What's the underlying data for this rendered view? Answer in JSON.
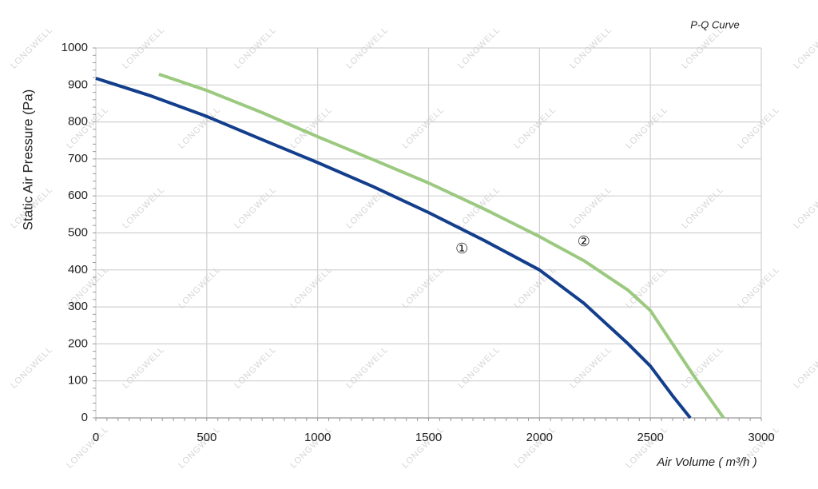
{
  "chart_data": {
    "type": "line",
    "title": "P-Q Curve",
    "watermark": "LONGWELL",
    "x_label": "Air Volume ( m³/h )",
    "y_label": "Static Air Pressure  (Pa)",
    "xlim": [
      0,
      3000
    ],
    "ylim": [
      0,
      1000
    ],
    "xticks": [
      0,
      500,
      1000,
      1500,
      2000,
      2500,
      3000
    ],
    "yticks": [
      0,
      100,
      200,
      300,
      400,
      500,
      600,
      700,
      800,
      900,
      1000
    ],
    "grid": true,
    "series": [
      {
        "name": "①",
        "color": "#123e8c",
        "x": [
          0,
          250,
          500,
          750,
          1000,
          1250,
          1500,
          1750,
          2000,
          2200,
          2400,
          2500,
          2600,
          2680
        ],
        "values": [
          918,
          870,
          815,
          752,
          690,
          625,
          555,
          480,
          400,
          310,
          200,
          140,
          60,
          0
        ]
      },
      {
        "name": "②",
        "color": "#9bc97f",
        "x": [
          284,
          500,
          750,
          1000,
          1250,
          1500,
          1750,
          2000,
          2200,
          2400,
          2500,
          2600,
          2700,
          2830
        ],
        "values": [
          929,
          885,
          825,
          760,
          698,
          635,
          565,
          490,
          425,
          345,
          290,
          200,
          110,
          0
        ]
      }
    ],
    "annotations": [
      {
        "text": "①",
        "x": 1650,
        "y": 455
      },
      {
        "text": "②",
        "x": 2200,
        "y": 475
      }
    ]
  }
}
